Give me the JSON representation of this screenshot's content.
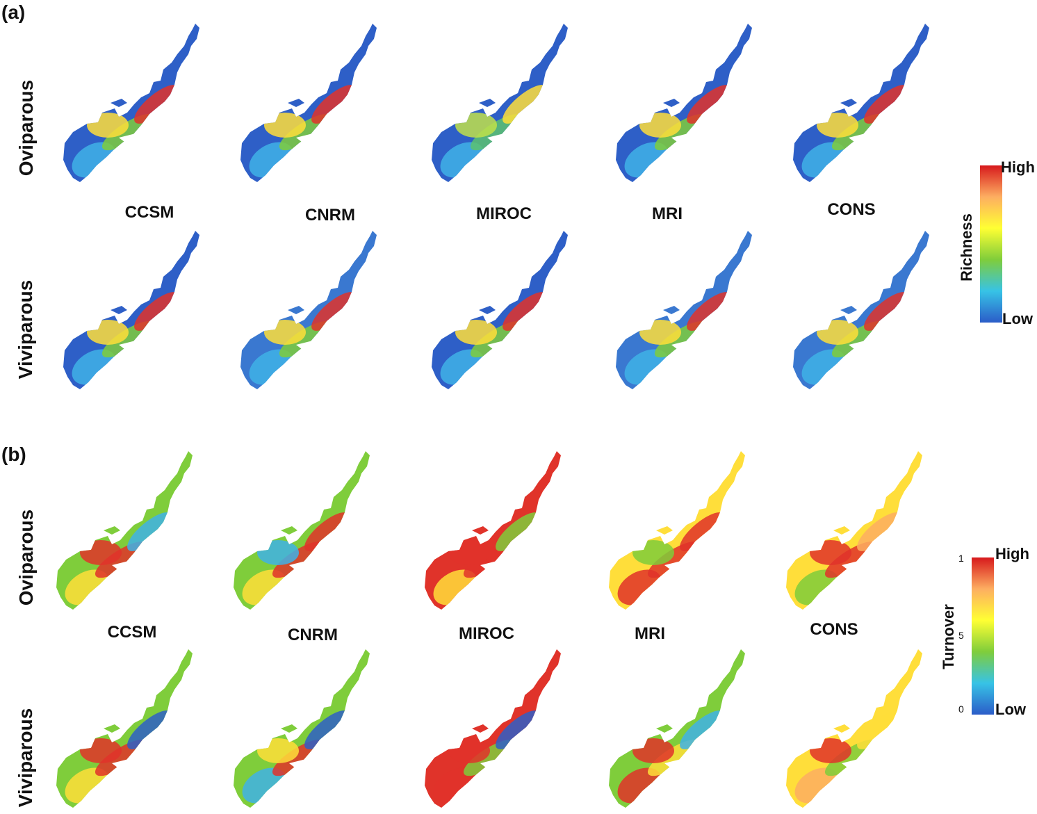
{
  "panels": [
    {
      "label": "(a)",
      "row_labels": [
        "Oviparous",
        "Viviparous"
      ],
      "models": [
        "CCSM",
        "CNRM",
        "MIROC",
        "MRI",
        "CONS"
      ],
      "legend": {
        "title": "Richness",
        "high": "High",
        "low": "Low",
        "colors": [
          "#d7191c",
          "#fdae61",
          "#ffff33",
          "#7fcd3b",
          "#37c3e6",
          "#2b5cc8"
        ]
      }
    },
    {
      "label": "(b)",
      "row_labels": [
        "Oviparous",
        "Viviparous"
      ],
      "models": [
        "CCSM",
        "CNRM",
        "MIROC",
        "MRI",
        "CONS"
      ],
      "legend": {
        "title": "Turnover",
        "high": "High",
        "low": "Low",
        "ticks": [
          "1",
          "5",
          "0"
        ],
        "colors": [
          "#d7191c",
          "#fdae61",
          "#ffff33",
          "#7fcd3b",
          "#37c3e6",
          "#2b5cc8"
        ]
      }
    }
  ],
  "maps": {
    "a": {
      "oviparous": [
        {
          "base": "#2e5fc7",
          "patches": [
            "#3fb2e6",
            "#7fcd3b",
            "#ffde3a",
            "#e0332a"
          ]
        },
        {
          "base": "#2e5fc7",
          "patches": [
            "#3fb2e6",
            "#7fcd3b",
            "#ffde3a",
            "#e0332a"
          ]
        },
        {
          "base": "#2e5fc7",
          "patches": [
            "#3fb2e6",
            "#5cc26e",
            "#bfe04a",
            "#ffde3a"
          ]
        },
        {
          "base": "#2e5fc7",
          "patches": [
            "#3fb2e6",
            "#7fcd3b",
            "#ffde3a",
            "#e0332a"
          ]
        },
        {
          "base": "#2e5fc7",
          "patches": [
            "#3fb2e6",
            "#7fcd3b",
            "#ffde3a",
            "#e0332a"
          ]
        }
      ],
      "viviparous": [
        {
          "base": "#2e5fc7",
          "patches": [
            "#3fb2e6",
            "#7fcd3b",
            "#ffde3a",
            "#e0332a"
          ]
        },
        {
          "base": "#3a78d0",
          "patches": [
            "#3fb2e6",
            "#7fcd3b",
            "#ffde3a",
            "#e0332a"
          ]
        },
        {
          "base": "#2e5fc7",
          "patches": [
            "#3fb2e6",
            "#7fcd3b",
            "#ffde3a",
            "#e0332a"
          ]
        },
        {
          "base": "#3a78d0",
          "patches": [
            "#3fb2e6",
            "#7fcd3b",
            "#ffde3a",
            "#e0332a"
          ]
        },
        {
          "base": "#3a78d0",
          "patches": [
            "#3fb2e6",
            "#7fcd3b",
            "#ffde3a",
            "#e0332a"
          ]
        }
      ]
    },
    "b": {
      "oviparous": [
        {
          "base": "#7fcd3b",
          "patches": [
            "#ffde3a",
            "#e0332a",
            "#e0332a",
            "#3fb2e6"
          ]
        },
        {
          "base": "#7fcd3b",
          "patches": [
            "#ffde3a",
            "#e0332a",
            "#3fb2e6",
            "#e0332a"
          ]
        },
        {
          "base": "#e0332a",
          "patches": [
            "#ffde3a",
            "#e0332a",
            "#e0332a",
            "#7fcd3b"
          ]
        },
        {
          "base": "#ffde3a",
          "patches": [
            "#e0332a",
            "#e0332a",
            "#7fcd3b",
            "#e0332a"
          ]
        },
        {
          "base": "#ffde3a",
          "patches": [
            "#7fcd3b",
            "#e0332a",
            "#e0332a",
            "#fdae61"
          ]
        }
      ],
      "viviparous": [
        {
          "base": "#7fcd3b",
          "patches": [
            "#ffde3a",
            "#e0332a",
            "#e0332a",
            "#2e5fc7"
          ]
        },
        {
          "base": "#7fcd3b",
          "patches": [
            "#3fb2e6",
            "#e0332a",
            "#ffde3a",
            "#2e5fc7"
          ]
        },
        {
          "base": "#e0332a",
          "patches": [
            "#e0332a",
            "#7fcd3b",
            "#e0332a",
            "#2e5fc7"
          ]
        },
        {
          "base": "#7fcd3b",
          "patches": [
            "#e0332a",
            "#ffde3a",
            "#e0332a",
            "#3fb2e6"
          ]
        },
        {
          "base": "#ffde3a",
          "patches": [
            "#fdae61",
            "#7fcd3b",
            "#e0332a",
            "#ffde3a"
          ]
        }
      ]
    }
  }
}
